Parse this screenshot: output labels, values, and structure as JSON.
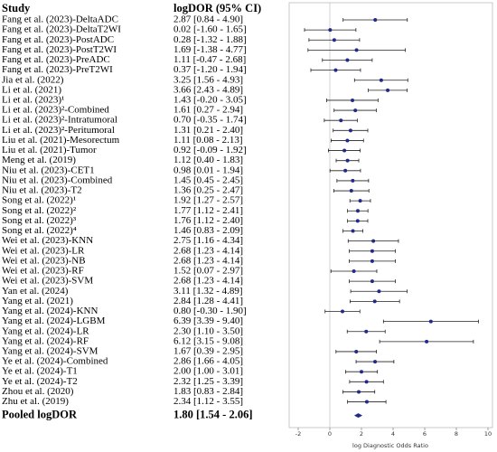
{
  "chart_data": {
    "type": "forest",
    "column_headers": [
      "Study",
      "logDOR (95% CI)"
    ],
    "xlabel": "log Diagnostic Odds Ratio",
    "xlim": [
      -2,
      10
    ],
    "xticks": [
      -2,
      0,
      2,
      4,
      6,
      8,
      10
    ],
    "reference_line": 0,
    "color": "#1f2a8a",
    "categories": [
      "Fang et al. (2023)-DeltaADC",
      "Fang et al. (2023)-DeltaT2WI",
      "Fang et al. (2023)-PostADC",
      "Fang et al. (2023)-PostT2WI",
      "Fang et al. (2023)-PreADC",
      "Fang et al. (2023)-PreT2WI",
      "Jia et al. (2022)",
      "Li et al. (2021)",
      "Li et al. (2023)¹",
      "Li et al. (2023)²-Combined",
      "Li et al. (2023)²-Intratumoral",
      "Li et al. (2023)²-Peritumoral",
      "Liu et al. (2021)-Mesorectum",
      "Liu et al. (2021)-Tumor",
      "Meng et al. (2019)",
      "Niu et al. (2023)-CET1",
      "Niu et al. (2023)-Combined",
      "Niu et al. (2023)-T2",
      "Song et al. (2022)¹",
      "Song et al. (2022)²",
      "Song et al. (2022)³",
      "Song et al. (2022)⁴",
      "Wei et al. (2023)-KNN",
      "Wei et al. (2023)-LR",
      "Wei et al. (2023)-NB",
      "Wei et al. (2023)-RF",
      "Wei et al. (2023)-SVM",
      "Yan et al. (2024)",
      "Yang et al. (2021)",
      "Yang et al. (2024)-KNN",
      "Yang et al. (2024)-LGBM",
      "Yang et al. (2024)-LR",
      "Yang et al. (2024)-RF",
      "Yang et al. (2024)-SVM",
      "Ye et al. (2024)-Combined",
      "Ye et al. (2024)-T1",
      "Ye et al. (2024)-T2",
      "Zhou et al. (2020)",
      "Zhu et al. (2019)"
    ],
    "values": [
      2.87,
      0.02,
      0.28,
      1.69,
      1.11,
      0.37,
      3.25,
      3.66,
      1.43,
      1.61,
      0.7,
      1.31,
      1.11,
      0.92,
      1.12,
      0.98,
      1.45,
      1.36,
      1.92,
      1.77,
      1.76,
      1.46,
      2.75,
      2.68,
      2.68,
      1.52,
      2.68,
      3.11,
      2.84,
      0.8,
      6.39,
      2.3,
      6.12,
      1.67,
      2.86,
      2.0,
      2.32,
      1.83,
      2.34
    ],
    "lower": [
      0.84,
      -1.6,
      -1.32,
      -1.38,
      -0.47,
      -1.2,
      1.56,
      2.43,
      -0.2,
      0.27,
      -0.35,
      0.21,
      0.08,
      -0.09,
      0.4,
      0.01,
      0.45,
      0.25,
      1.27,
      1.12,
      1.12,
      0.83,
      1.16,
      1.23,
      1.23,
      0.07,
      1.23,
      1.32,
      1.28,
      -0.3,
      3.39,
      1.1,
      3.15,
      0.39,
      1.66,
      1.0,
      1.25,
      0.83,
      1.12
    ],
    "upper": [
      4.9,
      1.65,
      1.88,
      4.77,
      2.68,
      1.94,
      4.93,
      4.89,
      3.05,
      2.94,
      1.74,
      2.4,
      2.13,
      1.92,
      1.83,
      1.94,
      2.45,
      2.47,
      2.57,
      2.41,
      2.4,
      2.09,
      4.34,
      4.14,
      4.14,
      2.97,
      4.14,
      4.89,
      4.41,
      1.9,
      9.4,
      3.5,
      9.08,
      2.95,
      4.05,
      3.01,
      3.39,
      2.84,
      3.55
    ],
    "value_labels": [
      "2.87 [0.84 - 4.90]",
      "0.02 [-1.60 - 1.65]",
      "0.28 [-1.32 - 1.88]",
      "1.69 [-1.38 - 4.77]",
      "1.11 [-0.47 - 2.68]",
      "0.37 [-1.20 - 1.94]",
      "3.25 [1.56 - 4.93]",
      "3.66 [2.43 - 4.89]",
      "1.43 [-0.20 - 3.05]",
      "1.61 [0.27 - 2.94]",
      "0.70 [-0.35 - 1.74]",
      "1.31 [0.21 - 2.40]",
      "1.11 [0.08 - 2.13]",
      "0.92 [-0.09 - 1.92]",
      "1.12 [0.40 - 1.83]",
      "0.98 [0.01 - 1.94]",
      "1.45 [0.45 - 2.45]",
      "1.36 [0.25 - 2.47]",
      "1.92 [1.27 - 2.57]",
      "1.77 [1.12 - 2.41]",
      "1.76 [1.12 - 2.40]",
      "1.46 [0.83 - 2.09]",
      "2.75 [1.16 - 4.34]",
      "2.68 [1.23 - 4.14]",
      "2.68 [1.23 - 4.14]",
      "1.52 [0.07 - 2.97]",
      "2.68 [1.23 - 4.14]",
      "3.11 [1.32 - 4.89]",
      "2.84 [1.28 - 4.41]",
      "0.80 [-0.30 - 1.90]",
      "6.39 [3.39 - 9.40]",
      "2.30 [1.10 - 3.50]",
      "6.12 [3.15 - 9.08]",
      "1.67 [0.39 - 2.95]",
      "2.86 [1.66 - 4.05]",
      "2.00 [1.00 - 3.01]",
      "2.32 [1.25 - 3.39]",
      "1.83 [0.83 - 2.84]",
      "2.34 [1.12 - 3.55]"
    ],
    "pooled": {
      "name": "Pooled logDOR",
      "value": 1.8,
      "lower": 1.54,
      "upper": 2.06,
      "value_label": "1.80 [1.54 - 2.06]"
    }
  }
}
